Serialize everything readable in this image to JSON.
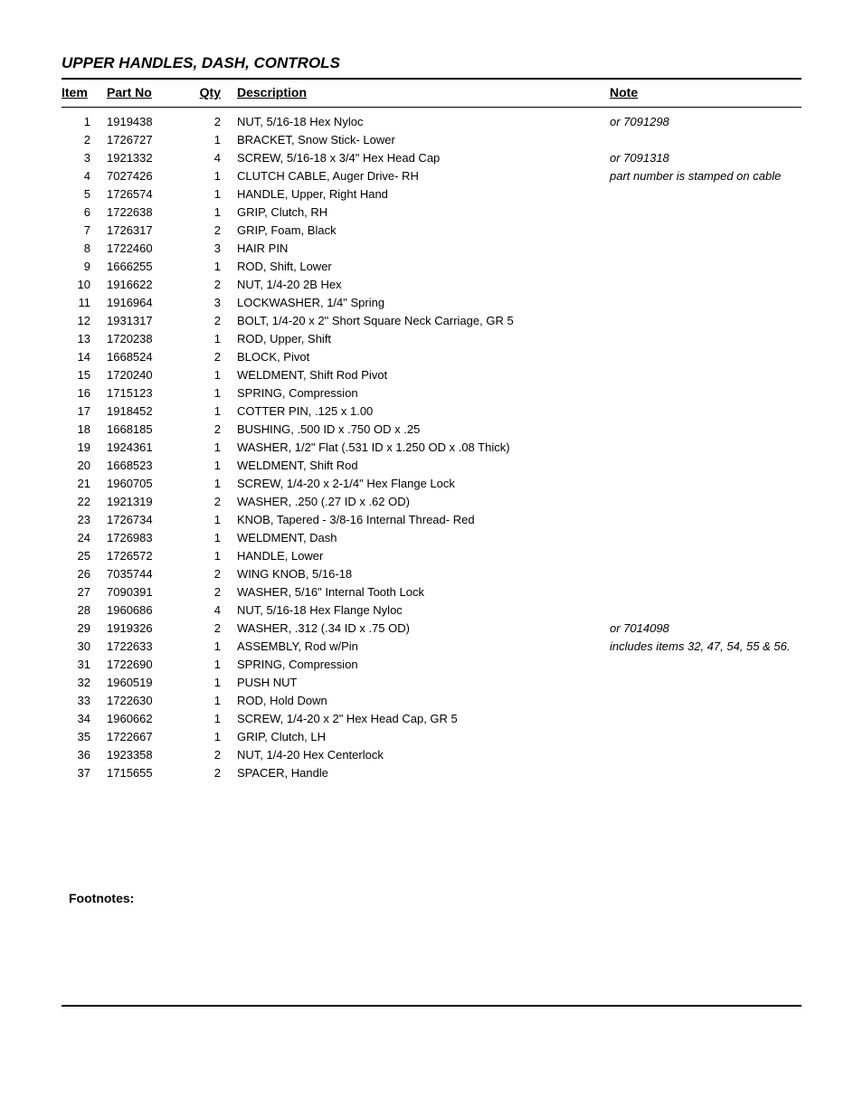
{
  "title": "UPPER HANDLES, DASH, CONTROLS",
  "headers": {
    "item": "Item",
    "partno": "Part No",
    "qty": "Qty",
    "description": "Description",
    "note": "Note"
  },
  "footnotes_label": "Footnotes:",
  "rows": [
    {
      "item": "1",
      "partno": "1919438",
      "qty": "2",
      "desc": "NUT, 5/16-18 Hex Nyloc",
      "note": "or 7091298"
    },
    {
      "item": "2",
      "partno": "1726727",
      "qty": "1",
      "desc": "BRACKET, Snow Stick- Lower",
      "note": ""
    },
    {
      "item": "3",
      "partno": "1921332",
      "qty": "4",
      "desc": "SCREW, 5/16-18 x 3/4\" Hex Head Cap",
      "note": "or 7091318"
    },
    {
      "item": "4",
      "partno": "7027426",
      "qty": "1",
      "desc": "CLUTCH CABLE, Auger Drive- RH",
      "note": "part number is stamped on cable"
    },
    {
      "item": "5",
      "partno": "1726574",
      "qty": "1",
      "desc": "HANDLE, Upper, Right Hand",
      "note": ""
    },
    {
      "item": "6",
      "partno": "1722638",
      "qty": "1",
      "desc": "GRIP, Clutch, RH",
      "note": ""
    },
    {
      "item": "7",
      "partno": "1726317",
      "qty": "2",
      "desc": "GRIP, Foam, Black",
      "note": ""
    },
    {
      "item": "8",
      "partno": "1722460",
      "qty": "3",
      "desc": "HAIR PIN",
      "note": ""
    },
    {
      "item": "9",
      "partno": "1666255",
      "qty": "1",
      "desc": "ROD, Shift, Lower",
      "note": ""
    },
    {
      "item": "10",
      "partno": "1916622",
      "qty": "2",
      "desc": "NUT, 1/4-20 2B Hex",
      "note": ""
    },
    {
      "item": "11",
      "partno": "1916964",
      "qty": "3",
      "desc": "LOCKWASHER, 1/4\" Spring",
      "note": ""
    },
    {
      "item": "12",
      "partno": "1931317",
      "qty": "2",
      "desc": "BOLT, 1/4-20 x 2\" Short Square Neck Carriage, GR 5",
      "note": ""
    },
    {
      "item": "13",
      "partno": "1720238",
      "qty": "1",
      "desc": "ROD, Upper, Shift",
      "note": ""
    },
    {
      "item": "14",
      "partno": "1668524",
      "qty": "2",
      "desc": "BLOCK, Pivot",
      "note": ""
    },
    {
      "item": "15",
      "partno": "1720240",
      "qty": "1",
      "desc": "WELDMENT, Shift Rod Pivot",
      "note": ""
    },
    {
      "item": "16",
      "partno": "1715123",
      "qty": "1",
      "desc": "SPRING, Compression",
      "note": ""
    },
    {
      "item": "17",
      "partno": "1918452",
      "qty": "1",
      "desc": "COTTER PIN, .125 x 1.00",
      "note": ""
    },
    {
      "item": "18",
      "partno": "1668185",
      "qty": "2",
      "desc": "BUSHING, .500 ID x .750 OD x .25",
      "note": ""
    },
    {
      "item": "19",
      "partno": "1924361",
      "qty": "1",
      "desc": "WASHER, 1/2\" Flat (.531 ID x 1.250 OD x .08 Thick)",
      "note": ""
    },
    {
      "item": "20",
      "partno": "1668523",
      "qty": "1",
      "desc": "WELDMENT, Shift Rod",
      "note": ""
    },
    {
      "item": "21",
      "partno": "1960705",
      "qty": "1",
      "desc": "SCREW, 1/4-20 x 2-1/4\" Hex Flange Lock",
      "note": ""
    },
    {
      "item": "22",
      "partno": "1921319",
      "qty": "2",
      "desc": "WASHER, .250 (.27 ID x .62 OD)",
      "note": ""
    },
    {
      "item": "23",
      "partno": "1726734",
      "qty": "1",
      "desc": "KNOB, Tapered - 3/8-16 Internal Thread- Red",
      "note": ""
    },
    {
      "item": "24",
      "partno": "1726983",
      "qty": "1",
      "desc": "WELDMENT, Dash",
      "note": ""
    },
    {
      "item": "25",
      "partno": "1726572",
      "qty": "1",
      "desc": "HANDLE, Lower",
      "note": ""
    },
    {
      "item": "26",
      "partno": "7035744",
      "qty": "2",
      "desc": "WING KNOB, 5/16-18",
      "note": ""
    },
    {
      "item": "27",
      "partno": "7090391",
      "qty": "2",
      "desc": "WASHER, 5/16\" Internal Tooth Lock",
      "note": ""
    },
    {
      "item": "28",
      "partno": "1960686",
      "qty": "4",
      "desc": "NUT, 5/16-18 Hex Flange Nyloc",
      "note": ""
    },
    {
      "item": "29",
      "partno": "1919326",
      "qty": "2",
      "desc": "WASHER, .312 (.34 ID x .75 OD)",
      "note": "or 7014098"
    },
    {
      "item": "30",
      "partno": "1722633",
      "qty": "1",
      "desc": "ASSEMBLY, Rod w/Pin",
      "note": "includes items 32, 47, 54, 55 & 56."
    },
    {
      "item": "31",
      "partno": "1722690",
      "qty": "1",
      "desc": "SPRING, Compression",
      "note": ""
    },
    {
      "item": "32",
      "partno": "1960519",
      "qty": "1",
      "desc": "PUSH NUT",
      "note": ""
    },
    {
      "item": "33",
      "partno": "1722630",
      "qty": "1",
      "desc": "ROD, Hold Down",
      "note": ""
    },
    {
      "item": "34",
      "partno": "1960662",
      "qty": "1",
      "desc": "SCREW, 1/4-20 x 2\" Hex Head Cap, GR 5",
      "note": ""
    },
    {
      "item": "35",
      "partno": "1722667",
      "qty": "1",
      "desc": "GRIP, Clutch, LH",
      "note": ""
    },
    {
      "item": "36",
      "partno": "1923358",
      "qty": "2",
      "desc": "NUT, 1/4-20 Hex Centerlock",
      "note": ""
    },
    {
      "item": "37",
      "partno": "1715655",
      "qty": "2",
      "desc": "SPACER, Handle",
      "note": ""
    }
  ]
}
